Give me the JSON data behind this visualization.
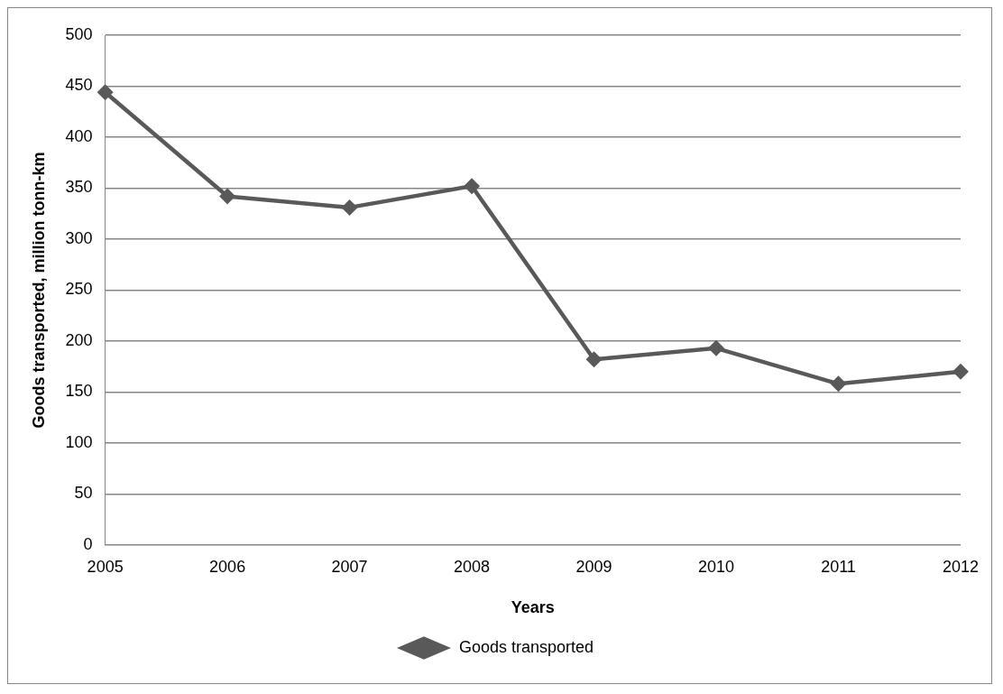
{
  "chart_data": {
    "type": "line",
    "xlabel": "Years",
    "ylabel": "Goods transported, million tonn-km",
    "categories": [
      "2005",
      "2006",
      "2007",
      "2008",
      "2009",
      "2010",
      "2011",
      "2012"
    ],
    "series": [
      {
        "name": "Goods transported",
        "color": "#595959",
        "values": [
          444,
          342,
          331,
          352,
          182,
          193,
          158,
          170
        ]
      }
    ],
    "ylim": [
      0,
      500
    ],
    "yticks": [
      0,
      50,
      100,
      150,
      200,
      250,
      300,
      350,
      400,
      450,
      500
    ],
    "grid": "y",
    "legend": "bottom",
    "marker": "diamond",
    "line_style": "solid"
  }
}
